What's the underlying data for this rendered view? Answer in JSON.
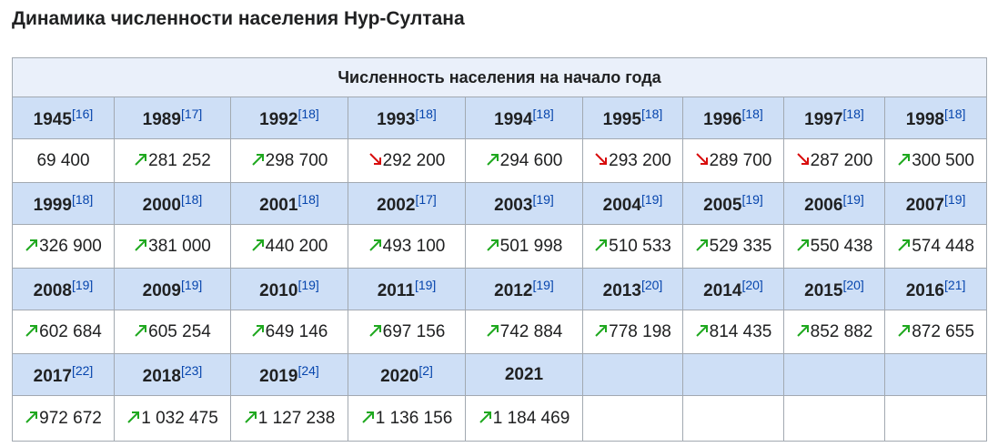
{
  "title": "Динамика численности населения Нур-Султана",
  "table": {
    "caption": "Численность населения на начало года",
    "columns": 9,
    "entries": [
      {
        "year": "1945",
        "ref": "[16]",
        "value": "69 400"
      },
      {
        "year": "1989",
        "ref": "[17]",
        "value": "281 252",
        "trend": "up"
      },
      {
        "year": "1992",
        "ref": "[18]",
        "value": "298 700",
        "trend": "up"
      },
      {
        "year": "1993",
        "ref": "[18]",
        "value": "292 200",
        "trend": "down"
      },
      {
        "year": "1994",
        "ref": "[18]",
        "value": "294 600",
        "trend": "up"
      },
      {
        "year": "1995",
        "ref": "[18]",
        "value": "293 200",
        "trend": "down"
      },
      {
        "year": "1996",
        "ref": "[18]",
        "value": "289 700",
        "trend": "down"
      },
      {
        "year": "1997",
        "ref": "[18]",
        "value": "287 200",
        "trend": "down"
      },
      {
        "year": "1998",
        "ref": "[18]",
        "value": "300 500",
        "trend": "up"
      },
      {
        "year": "1999",
        "ref": "[18]",
        "value": "326 900",
        "trend": "up"
      },
      {
        "year": "2000",
        "ref": "[18]",
        "value": "381 000",
        "trend": "up"
      },
      {
        "year": "2001",
        "ref": "[18]",
        "value": "440 200",
        "trend": "up"
      },
      {
        "year": "2002",
        "ref": "[17]",
        "value": "493 100",
        "trend": "up"
      },
      {
        "year": "2003",
        "ref": "[19]",
        "value": "501 998",
        "trend": "up"
      },
      {
        "year": "2004",
        "ref": "[19]",
        "value": "510 533",
        "trend": "up"
      },
      {
        "year": "2005",
        "ref": "[19]",
        "value": "529 335",
        "trend": "up"
      },
      {
        "year": "2006",
        "ref": "[19]",
        "value": "550 438",
        "trend": "up"
      },
      {
        "year": "2007",
        "ref": "[19]",
        "value": "574 448",
        "trend": "up"
      },
      {
        "year": "2008",
        "ref": "[19]",
        "value": "602 684",
        "trend": "up"
      },
      {
        "year": "2009",
        "ref": "[19]",
        "value": "605 254",
        "trend": "up"
      },
      {
        "year": "2010",
        "ref": "[19]",
        "value": "649 146",
        "trend": "up"
      },
      {
        "year": "2011",
        "ref": "[19]",
        "value": "697 156",
        "trend": "up"
      },
      {
        "year": "2012",
        "ref": "[19]",
        "value": "742 884",
        "trend": "up"
      },
      {
        "year": "2013",
        "ref": "[20]",
        "value": "778 198",
        "trend": "up"
      },
      {
        "year": "2014",
        "ref": "[20]",
        "value": "814 435",
        "trend": "up"
      },
      {
        "year": "2015",
        "ref": "[20]",
        "value": "852 882",
        "trend": "up"
      },
      {
        "year": "2016",
        "ref": "[21]",
        "value": "872 655",
        "trend": "up"
      },
      {
        "year": "2017",
        "ref": "[22]",
        "value": "972 672",
        "trend": "up"
      },
      {
        "year": "2018",
        "ref": "[23]",
        "value": "1 032 475",
        "trend": "up"
      },
      {
        "year": "2019",
        "ref": "[24]",
        "value": "1 127 238",
        "trend": "up"
      },
      {
        "year": "2020",
        "ref": "[2]",
        "value": "1 136 156",
        "trend": "up"
      },
      {
        "year": "2021",
        "value": "1 184 469",
        "trend": "up"
      }
    ]
  }
}
